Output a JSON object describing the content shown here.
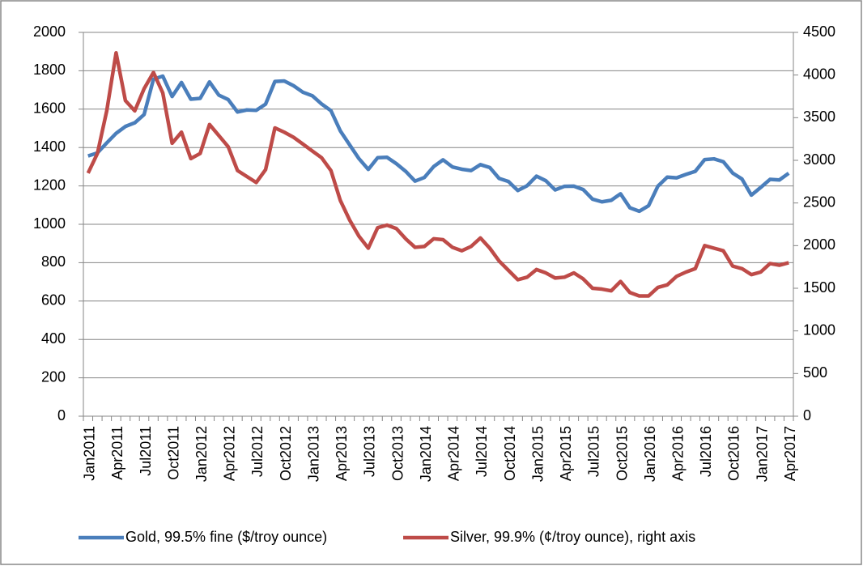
{
  "chart_data": {
    "type": "line",
    "categories": [
      "Jan2011",
      null,
      null,
      "Apr2011",
      null,
      null,
      "Jul2011",
      null,
      null,
      "Oct2011",
      null,
      null,
      "Jan2012",
      null,
      null,
      "Apr2012",
      null,
      null,
      "Jul2012",
      null,
      null,
      "Oct2012",
      null,
      null,
      "Jan2013",
      null,
      null,
      "Apr2013",
      null,
      null,
      "Jul2013",
      null,
      null,
      "Oct2013",
      null,
      null,
      "Jan2014",
      null,
      null,
      "Apr2014",
      null,
      null,
      "Jul2014",
      null,
      null,
      "Oct2014",
      null,
      null,
      "Jan2015",
      null,
      null,
      "Apr2015",
      null,
      null,
      "Jul2015",
      null,
      null,
      "Oct2015",
      null,
      null,
      "Jan2016",
      null,
      null,
      "Apr2016",
      null,
      null,
      "Jul2016",
      null,
      null,
      "Oct2016",
      null,
      null,
      "Jan2017",
      null,
      null,
      "Apr2017"
    ],
    "series": [
      {
        "name": "Gold, 99.5% fine ($/troy ounce)",
        "color": "#4a7ebb",
        "values": [
          1356,
          1372,
          1424,
          1474,
          1510,
          1529,
          1572,
          1756,
          1772,
          1666,
          1739,
          1652,
          1656,
          1742,
          1673,
          1650,
          1585,
          1596,
          1594,
          1626,
          1744,
          1747,
          1722,
          1688,
          1670,
          1627,
          1592,
          1487,
          1414,
          1342,
          1286,
          1347,
          1349,
          1316,
          1276,
          1225,
          1244,
          1301,
          1336,
          1299,
          1287,
          1280,
          1311,
          1296,
          1239,
          1223,
          1176,
          1201,
          1251,
          1227,
          1179,
          1198,
          1199,
          1181,
          1131,
          1117,
          1125,
          1159,
          1086,
          1068,
          1097,
          1199,
          1246,
          1242,
          1260,
          1276,
          1337,
          1341,
          1326,
          1267,
          1236,
          1152,
          1192,
          1234,
          1231,
          1266
        ]
      },
      {
        "name": "Silver, 99.9% (¢/troy ounce), right axis",
        "color": "#be4b48",
        "axis": "y2",
        "values": [
          2850,
          3080,
          3580,
          4260,
          3700,
          3580,
          3840,
          4030,
          3790,
          3200,
          3330,
          3020,
          3080,
          3420,
          3290,
          3160,
          2880,
          2810,
          2740,
          2890,
          3380,
          3330,
          3270,
          3190,
          3110,
          3030,
          2880,
          2530,
          2300,
          2110,
          1970,
          2210,
          2240,
          2200,
          2080,
          1980,
          1990,
          2080,
          2070,
          1980,
          1940,
          1990,
          2090,
          1970,
          1820,
          1710,
          1600,
          1630,
          1720,
          1680,
          1620,
          1630,
          1680,
          1610,
          1500,
          1490,
          1470,
          1580,
          1450,
          1410,
          1410,
          1510,
          1540,
          1640,
          1690,
          1730,
          2000,
          1970,
          1940,
          1760,
          1730,
          1660,
          1690,
          1790,
          1770,
          1800
        ]
      }
    ],
    "ylim": [
      0,
      2000
    ],
    "yticks": [
      0,
      200,
      400,
      600,
      800,
      1000,
      1200,
      1400,
      1600,
      1800,
      2000
    ],
    "y2lim": [
      0,
      4500
    ],
    "y2ticks": [
      0,
      500,
      1000,
      1500,
      2000,
      2500,
      3000,
      3500,
      4000,
      4500
    ],
    "grid": true,
    "legend": "bottom"
  }
}
